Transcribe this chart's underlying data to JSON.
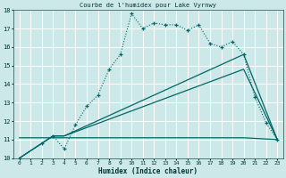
{
  "title": "Courbe de l'humidex pour Lake Vyrnwy",
  "xlabel": "Humidex (Indice chaleur)",
  "bg_color": "#cce8e8",
  "grid_color": "#ffffff",
  "line_color": "#006666",
  "line1_x": [
    0,
    2,
    3,
    4,
    5,
    6,
    7,
    8,
    9,
    10,
    11,
    12,
    13,
    14,
    15,
    16,
    17,
    18,
    19,
    20,
    21,
    22,
    23
  ],
  "line1_y": [
    10.0,
    10.8,
    11.2,
    10.5,
    11.8,
    12.8,
    13.4,
    14.8,
    15.6,
    17.8,
    17.0,
    17.3,
    17.2,
    17.2,
    16.9,
    17.2,
    16.2,
    16.0,
    16.3,
    15.6,
    13.3,
    11.9,
    11.0
  ],
  "line2_x": [
    0,
    3,
    4,
    20,
    23
  ],
  "line2_y": [
    10.0,
    11.2,
    11.2,
    15.6,
    11.0
  ],
  "line3_x": [
    0,
    3,
    4,
    20,
    23
  ],
  "line3_y": [
    10.0,
    11.2,
    11.2,
    14.8,
    11.0
  ],
  "line4_x": [
    0,
    20,
    23
  ],
  "line4_y": [
    11.1,
    11.1,
    11.0
  ],
  "xlim": [
    -0.5,
    23.5
  ],
  "ylim": [
    10,
    18
  ],
  "xticks": [
    0,
    1,
    2,
    3,
    4,
    5,
    6,
    7,
    8,
    9,
    10,
    11,
    12,
    13,
    14,
    15,
    16,
    17,
    18,
    19,
    20,
    21,
    22,
    23
  ],
  "yticks": [
    10,
    11,
    12,
    13,
    14,
    15,
    16,
    17,
    18
  ]
}
